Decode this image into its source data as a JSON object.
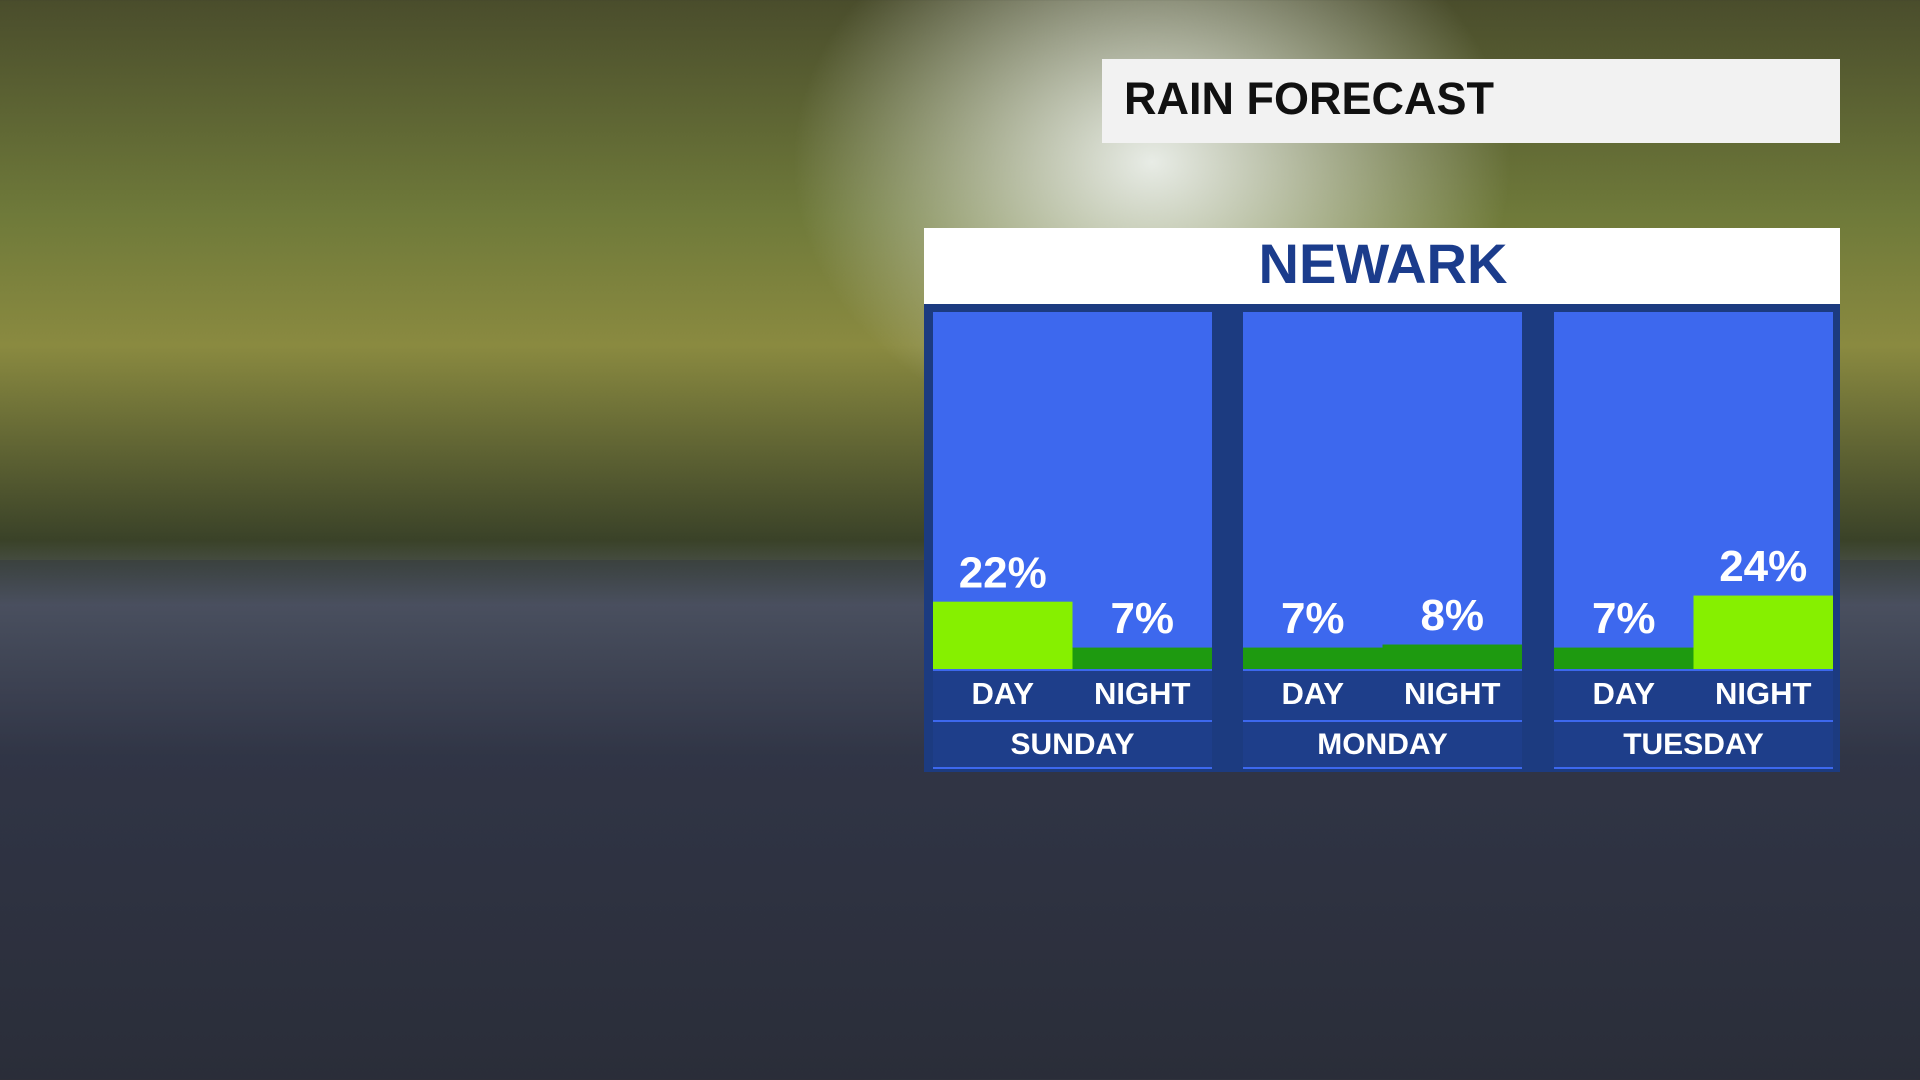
{
  "chart_data": {
    "type": "bar",
    "title": "RAIN FORECAST",
    "subtitle": "NEWARK",
    "categories": [
      "SUNDAY",
      "MONDAY",
      "TUESDAY"
    ],
    "series": [
      {
        "name": "DAY",
        "values": [
          22,
          7,
          7
        ],
        "value_labels": [
          "22%",
          "7%",
          "7%"
        ],
        "colors": [
          "#86f000",
          "#1e9a10",
          "#1e9a10"
        ]
      },
      {
        "name": "NIGHT",
        "values": [
          7,
          8,
          24
        ],
        "value_labels": [
          "7%",
          "8%",
          "24%"
        ],
        "colors": [
          "#1e9a10",
          "#1e9a10",
          "#86f000"
        ]
      }
    ]
  }
}
